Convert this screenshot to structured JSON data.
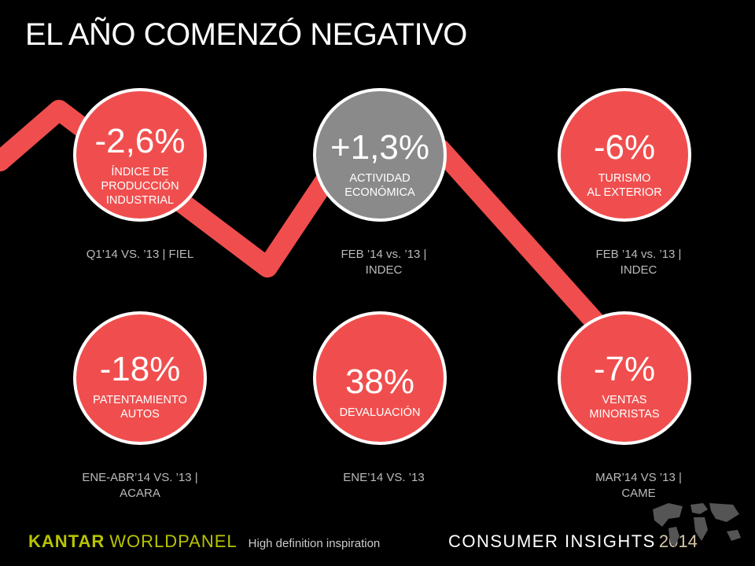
{
  "title": "EL AÑO COMENZÓ NEGATIVO",
  "colors": {
    "accent": "#f04e4e",
    "neutral": "#8a8a8a",
    "background": "#000000"
  },
  "indicators": [
    {
      "value": "-2,6%",
      "label": "ÍNDICE DE\nPRODUCCIÓN\nINDUSTRIAL",
      "source": "Q1’14 VS. ’13 | FIEL",
      "color": "#f04e4e"
    },
    {
      "value": "+1,3%",
      "label": "ACTIVIDAD\nECONÓMICA",
      "source": "FEB ’14 vs. ’13 |\nINDEC",
      "color": "#8a8a8a"
    },
    {
      "value": "-6%",
      "label": "TURISMO\nAL EXTERIOR",
      "source": "FEB ’14 vs. ’13 |\nINDEC",
      "color": "#f04e4e"
    },
    {
      "value": "-18%",
      "label": "PATENTAMIENTO\nAUTOS",
      "source": "ENE-ABR’14 VS. ’13 |\nACARA",
      "color": "#f04e4e"
    },
    {
      "value": "38%",
      "label": "DEVALUACIÓN",
      "source": "ENE’14 VS. ’13",
      "color": "#f04e4e"
    },
    {
      "value": "-7%",
      "label": "VENTAS\nMINORISTAS",
      "source": "MAR’14 VS ’13 |\nCAME",
      "color": "#f04e4e"
    }
  ],
  "footer": {
    "brand_first": "KANTAR",
    "brand_second": "WORLDPANEL",
    "tagline": "High definition inspiration",
    "product": "CONSUMER INSIGHTS",
    "year": "2014"
  }
}
